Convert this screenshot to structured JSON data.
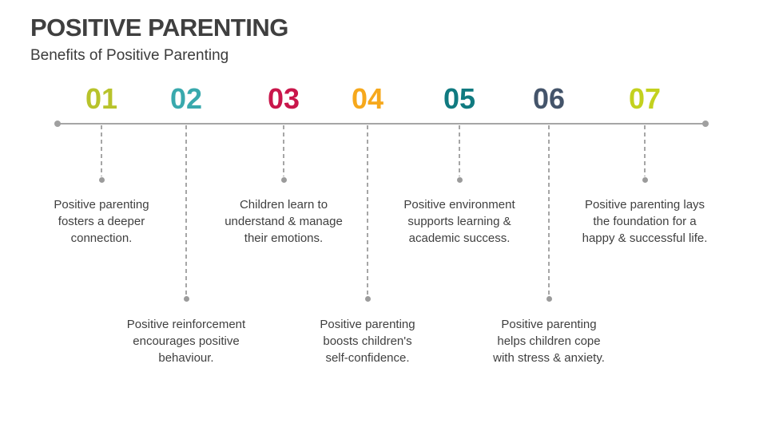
{
  "slide": {
    "title": "POSITIVE PARENTING",
    "subtitle": "Benefits of Positive Parenting"
  },
  "timeline": {
    "line_color": "#a6a6a6",
    "text_color": "#404040",
    "items": [
      {
        "number": "01",
        "color": "#b8c32b",
        "side": "top",
        "lines": [
          "Positive parenting",
          "fosters a deeper",
          "connection."
        ]
      },
      {
        "number": "02",
        "color": "#39a9ad",
        "side": "bottom",
        "lines": [
          "Positive reinforcement",
          "encourages positive",
          "behaviour."
        ]
      },
      {
        "number": "03",
        "color": "#c9164b",
        "side": "top",
        "lines": [
          "Children learn to",
          "understand & manage",
          "their emotions."
        ]
      },
      {
        "number": "04",
        "color": "#f6a81c",
        "side": "bottom",
        "lines": [
          "Positive parenting",
          "boosts children's",
          "self-confidence."
        ]
      },
      {
        "number": "05",
        "color": "#107a80",
        "side": "top",
        "lines": [
          "Positive environment",
          "supports learning &",
          "academic success."
        ]
      },
      {
        "number": "06",
        "color": "#44546a",
        "side": "bottom",
        "lines": [
          "Positive parenting",
          "helps children cope",
          "with stress & anxiety."
        ]
      },
      {
        "number": "07",
        "color": "#c3d11e",
        "side": "top",
        "lines": [
          "Positive parenting lays",
          "the foundation for a",
          "happy & successful life."
        ]
      }
    ]
  }
}
